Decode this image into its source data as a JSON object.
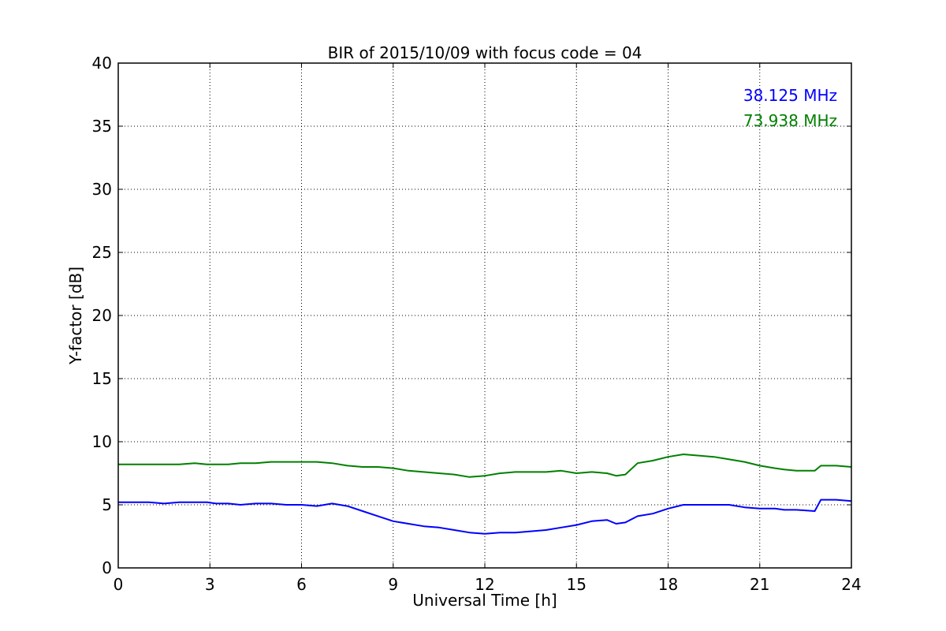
{
  "chart_data": {
    "type": "line",
    "title": "BIR of 2015/10/09 with focus code = 04",
    "xlabel": "Universal Time [h]",
    "ylabel": "Y-factor [dB]",
    "xlim": [
      0,
      24
    ],
    "ylim": [
      0,
      40
    ],
    "xticks": [
      0,
      3,
      6,
      9,
      12,
      15,
      18,
      21,
      24
    ],
    "yticks": [
      0,
      5,
      10,
      15,
      20,
      25,
      30,
      35,
      40
    ],
    "xtick_labels": [
      "0",
      "3",
      "6",
      "9",
      "12",
      "15",
      "18",
      "21",
      "24"
    ],
    "ytick_labels": [
      "0",
      "5",
      "10",
      "15",
      "20",
      "25",
      "30",
      "35",
      "40"
    ],
    "grid": true,
    "legend_position": "top-right",
    "series": [
      {
        "name": "38.125 MHz",
        "color": "#0000ff",
        "x": [
          0,
          0.5,
          1,
          1.5,
          2,
          2.5,
          2.9,
          3.2,
          3.6,
          4.0,
          4.5,
          5.0,
          5.5,
          6.0,
          6.5,
          7.0,
          7.5,
          8.0,
          8.5,
          9.0,
          9.5,
          10.0,
          10.5,
          11.0,
          11.5,
          12.0,
          12.5,
          13.0,
          13.5,
          14.0,
          14.5,
          15.0,
          15.5,
          16.0,
          16.3,
          16.6,
          17.0,
          17.5,
          18.0,
          18.5,
          19.0,
          19.5,
          20.0,
          20.5,
          21.0,
          21.5,
          21.8,
          22.2,
          22.8,
          23.0,
          23.5,
          24.0
        ],
        "y": [
          5.2,
          5.2,
          5.2,
          5.1,
          5.2,
          5.2,
          5.2,
          5.1,
          5.1,
          5.0,
          5.1,
          5.1,
          5.0,
          5.0,
          4.9,
          5.1,
          4.9,
          4.5,
          4.1,
          3.7,
          3.5,
          3.3,
          3.2,
          3.0,
          2.8,
          2.7,
          2.8,
          2.8,
          2.9,
          3.0,
          3.2,
          3.4,
          3.7,
          3.8,
          3.5,
          3.6,
          4.1,
          4.3,
          4.7,
          5.0,
          5.0,
          5.0,
          5.0,
          4.8,
          4.7,
          4.7,
          4.6,
          4.6,
          4.5,
          5.4,
          5.4,
          5.3
        ]
      },
      {
        "name": "73.938 MHz",
        "color": "#008000",
        "x": [
          0,
          0.5,
          1,
          1.5,
          2,
          2.5,
          2.9,
          3.2,
          3.6,
          4.0,
          4.5,
          5.0,
          5.5,
          6.0,
          6.5,
          7.0,
          7.5,
          8.0,
          8.5,
          9.0,
          9.5,
          10.0,
          10.5,
          11.0,
          11.5,
          12.0,
          12.5,
          13.0,
          13.5,
          14.0,
          14.5,
          15.0,
          15.5,
          16.0,
          16.3,
          16.6,
          17.0,
          17.5,
          18.0,
          18.5,
          19.0,
          19.5,
          20.0,
          20.5,
          21.0,
          21.5,
          21.8,
          22.2,
          22.8,
          23.0,
          23.5,
          24.0
        ],
        "y": [
          8.2,
          8.2,
          8.2,
          8.2,
          8.2,
          8.3,
          8.2,
          8.2,
          8.2,
          8.3,
          8.3,
          8.4,
          8.4,
          8.4,
          8.4,
          8.3,
          8.1,
          8.0,
          8.0,
          7.9,
          7.7,
          7.6,
          7.5,
          7.4,
          7.2,
          7.3,
          7.5,
          7.6,
          7.6,
          7.6,
          7.7,
          7.5,
          7.6,
          7.5,
          7.3,
          7.4,
          8.3,
          8.5,
          8.8,
          9.0,
          8.9,
          8.8,
          8.6,
          8.4,
          8.1,
          7.9,
          7.8,
          7.7,
          7.7,
          8.1,
          8.1,
          8.0
        ]
      }
    ],
    "annotations": [
      "38.125 MHz",
      "73.938 MHz"
    ]
  }
}
